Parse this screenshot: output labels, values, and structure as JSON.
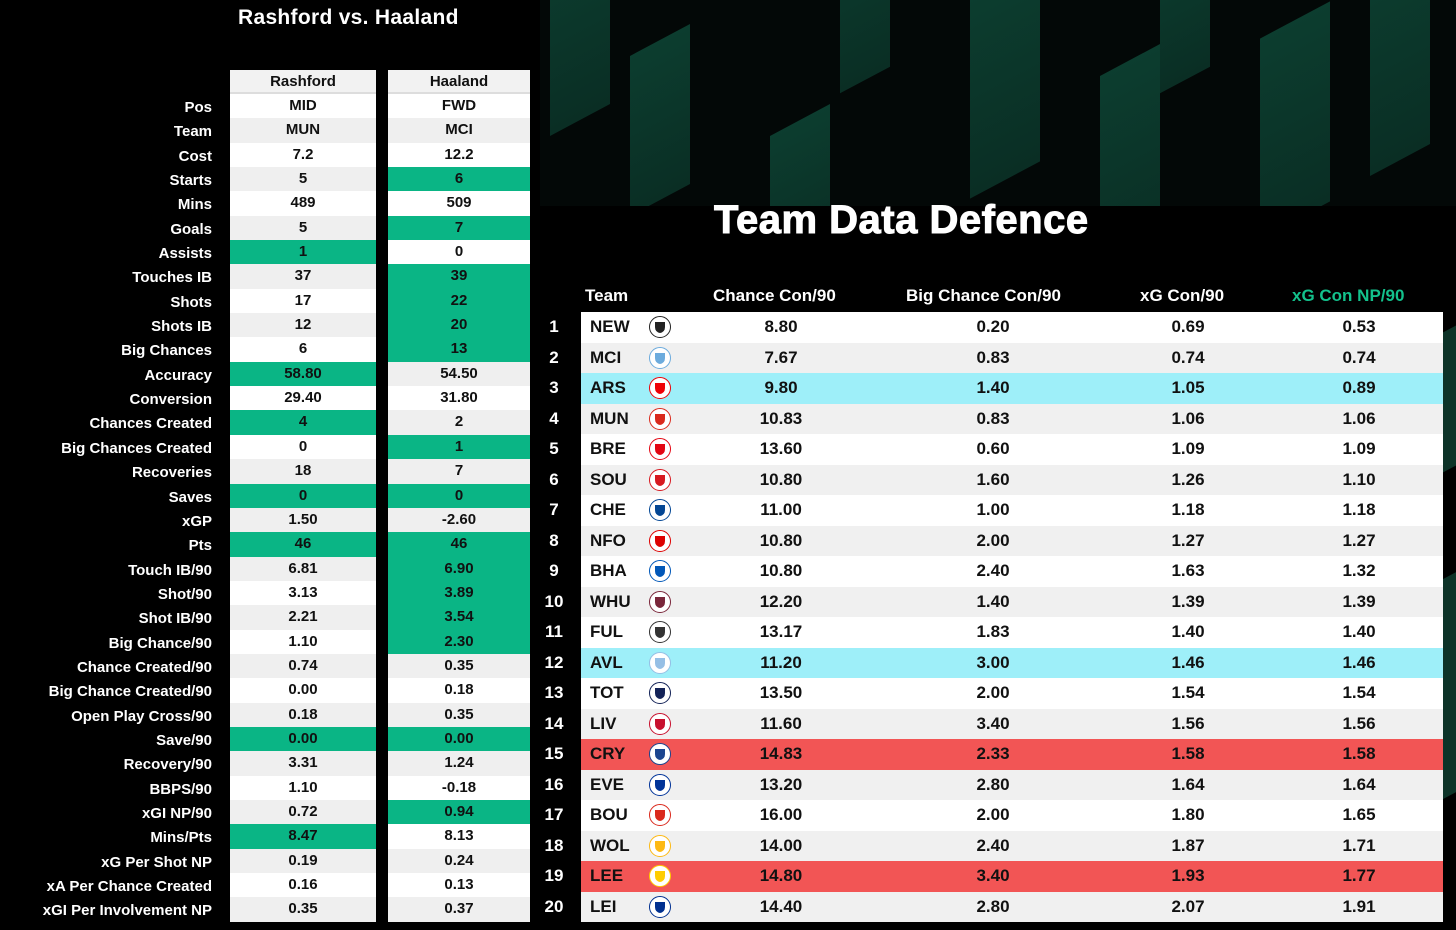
{
  "left_title": "Rashford vs. Haaland",
  "right_title": "Team Data Defence",
  "comparison": {
    "player1": "Rashford",
    "player2": "Haaland",
    "labels": [
      "Pos",
      "Team",
      "Cost",
      "Starts",
      "Mins",
      "Goals",
      "Assists",
      "Touches IB",
      "Shots",
      "Shots IB",
      "Big Chances",
      "Accuracy",
      "Conversion",
      "Chances Created",
      "Big Chances Created",
      "Recoveries",
      "Saves",
      "xGP",
      "Pts",
      "Touch IB/90",
      "Shot/90",
      "Shot IB/90",
      "Big Chance/90",
      "Chance Created/90",
      "Big Chance Created/90",
      "Open Play Cross/90",
      "Save/90",
      "Recovery/90",
      "BBPS/90",
      "xGI NP/90",
      "Mins/Pts",
      "xG Per Shot NP",
      "xA Per Chance Created",
      "xGI Per Involvement NP"
    ],
    "player1_values": [
      "MID",
      "MUN",
      "7.2",
      "5",
      "489",
      "5",
      "1",
      "37",
      "17",
      "12",
      "6",
      "58.80",
      "29.40",
      "4",
      "0",
      "18",
      "0",
      "1.50",
      "46",
      "6.81",
      "3.13",
      "2.21",
      "1.10",
      "0.74",
      "0.00",
      "0.18",
      "0.00",
      "3.31",
      "1.10",
      "0.72",
      "8.47",
      "0.19",
      "0.16",
      "0.35"
    ],
    "player2_values": [
      "FWD",
      "MCI",
      "12.2",
      "6",
      "509",
      "7",
      "0",
      "39",
      "22",
      "20",
      "13",
      "54.50",
      "31.80",
      "2",
      "1",
      "7",
      "0",
      "-2.60",
      "46",
      "6.90",
      "3.89",
      "3.54",
      "2.30",
      "0.35",
      "0.18",
      "0.35",
      "0.00",
      "1.24",
      "-0.18",
      "0.94",
      "8.13",
      "0.24",
      "0.13",
      "0.37"
    ],
    "player1_highlight": [
      false,
      false,
      false,
      false,
      false,
      false,
      true,
      false,
      false,
      false,
      false,
      true,
      false,
      true,
      false,
      false,
      true,
      false,
      true,
      false,
      false,
      false,
      false,
      false,
      false,
      false,
      true,
      false,
      false,
      false,
      true,
      false,
      false,
      false
    ],
    "player2_highlight": [
      false,
      false,
      false,
      true,
      false,
      true,
      false,
      true,
      true,
      true,
      true,
      false,
      false,
      false,
      true,
      false,
      true,
      false,
      true,
      true,
      true,
      true,
      true,
      false,
      false,
      false,
      true,
      false,
      false,
      true,
      false,
      false,
      false,
      false
    ]
  },
  "team_table": {
    "headers": {
      "team": "Team",
      "c1": "Chance Con/90",
      "c2": "Big Chance Con/90",
      "c3": "xG Con/90",
      "c4": "xG Con NP/90"
    },
    "rows": [
      {
        "rank": "1",
        "team": "NEW",
        "c1": "8.80",
        "c2": "0.20",
        "c3": "0.69",
        "c4": "0.53",
        "hl": "",
        "color": "#222222",
        "icon": "newcastle-crest-icon"
      },
      {
        "rank": "2",
        "team": "MCI",
        "c1": "7.67",
        "c2": "0.83",
        "c3": "0.74",
        "c4": "0.74",
        "hl": "",
        "color": "#6cabdd",
        "icon": "man-city-crest-icon"
      },
      {
        "rank": "3",
        "team": "ARS",
        "c1": "9.80",
        "c2": "1.40",
        "c3": "1.05",
        "c4": "0.89",
        "hl": "cyan",
        "color": "#ef0107",
        "icon": "arsenal-crest-icon"
      },
      {
        "rank": "4",
        "team": "MUN",
        "c1": "10.83",
        "c2": "0.83",
        "c3": "1.06",
        "c4": "1.06",
        "hl": "",
        "color": "#da291c",
        "icon": "man-united-crest-icon"
      },
      {
        "rank": "5",
        "team": "BRE",
        "c1": "13.60",
        "c2": "0.60",
        "c3": "1.09",
        "c4": "1.09",
        "hl": "",
        "color": "#e30613",
        "icon": "brentford-crest-icon"
      },
      {
        "rank": "6",
        "team": "SOU",
        "c1": "10.80",
        "c2": "1.60",
        "c3": "1.26",
        "c4": "1.10",
        "hl": "",
        "color": "#d71920",
        "icon": "southampton-crest-icon"
      },
      {
        "rank": "7",
        "team": "CHE",
        "c1": "11.00",
        "c2": "1.00",
        "c3": "1.18",
        "c4": "1.18",
        "hl": "",
        "color": "#034694",
        "icon": "chelsea-crest-icon"
      },
      {
        "rank": "8",
        "team": "NFO",
        "c1": "10.80",
        "c2": "2.00",
        "c3": "1.27",
        "c4": "1.27",
        "hl": "",
        "color": "#dd0000",
        "icon": "forest-crest-icon"
      },
      {
        "rank": "9",
        "team": "BHA",
        "c1": "10.80",
        "c2": "2.40",
        "c3": "1.63",
        "c4": "1.32",
        "hl": "",
        "color": "#0057b8",
        "icon": "brighton-crest-icon"
      },
      {
        "rank": "10",
        "team": "WHU",
        "c1": "12.20",
        "c2": "1.40",
        "c3": "1.39",
        "c4": "1.39",
        "hl": "",
        "color": "#7a263a",
        "icon": "west-ham-crest-icon"
      },
      {
        "rank": "11",
        "team": "FUL",
        "c1": "13.17",
        "c2": "1.83",
        "c3": "1.40",
        "c4": "1.40",
        "hl": "",
        "color": "#333333",
        "icon": "fulham-crest-icon"
      },
      {
        "rank": "12",
        "team": "AVL",
        "c1": "11.20",
        "c2": "3.00",
        "c3": "1.46",
        "c4": "1.46",
        "hl": "cyan",
        "color": "#95bfe5",
        "icon": "villa-crest-icon"
      },
      {
        "rank": "13",
        "team": "TOT",
        "c1": "13.50",
        "c2": "2.00",
        "c3": "1.54",
        "c4": "1.54",
        "hl": "",
        "color": "#132257",
        "icon": "spurs-crest-icon"
      },
      {
        "rank": "14",
        "team": "LIV",
        "c1": "11.60",
        "c2": "3.40",
        "c3": "1.56",
        "c4": "1.56",
        "hl": "",
        "color": "#c8102e",
        "icon": "liverpool-crest-icon"
      },
      {
        "rank": "15",
        "team": "CRY",
        "c1": "14.83",
        "c2": "2.33",
        "c3": "1.58",
        "c4": "1.58",
        "hl": "red",
        "color": "#1b458f",
        "icon": "palace-crest-icon"
      },
      {
        "rank": "16",
        "team": "EVE",
        "c1": "13.20",
        "c2": "2.80",
        "c3": "1.64",
        "c4": "1.64",
        "hl": "",
        "color": "#003399",
        "icon": "everton-crest-icon"
      },
      {
        "rank": "17",
        "team": "BOU",
        "c1": "16.00",
        "c2": "2.00",
        "c3": "1.80",
        "c4": "1.65",
        "hl": "",
        "color": "#da291c",
        "icon": "bournemouth-crest-icon"
      },
      {
        "rank": "18",
        "team": "WOL",
        "c1": "14.00",
        "c2": "2.40",
        "c3": "1.87",
        "c4": "1.71",
        "hl": "",
        "color": "#fdb913",
        "icon": "wolves-crest-icon"
      },
      {
        "rank": "19",
        "team": "LEE",
        "c1": "14.80",
        "c2": "3.40",
        "c3": "1.93",
        "c4": "1.77",
        "hl": "red",
        "color": "#ffcd00",
        "icon": "leeds-crest-icon"
      },
      {
        "rank": "20",
        "team": "LEI",
        "c1": "14.40",
        "c2": "2.80",
        "c3": "2.07",
        "c4": "1.91",
        "hl": "",
        "color": "#003090",
        "icon": "leicester-crest-icon"
      }
    ]
  },
  "colors": {
    "highlight_green": "#0ab585",
    "cyan": "#9eeff9",
    "red": "#f25555"
  }
}
